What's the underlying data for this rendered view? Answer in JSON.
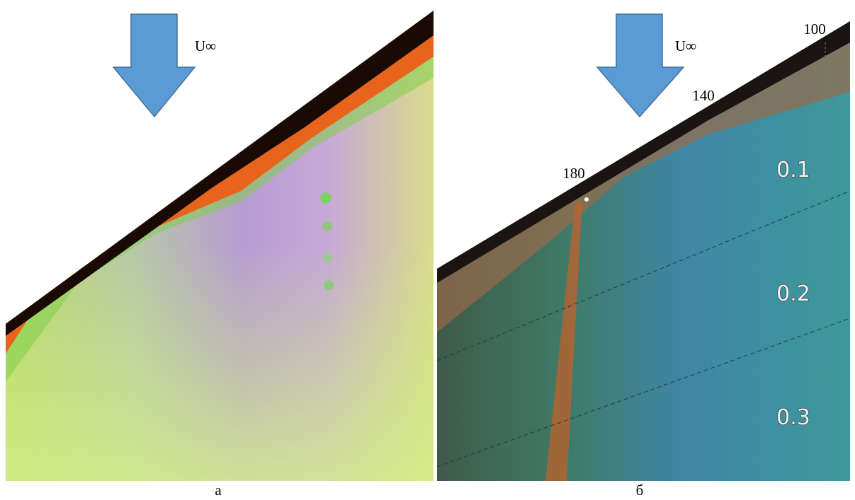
{
  "panels": [
    {
      "label": "а",
      "flow_label": "U∞"
    },
    {
      "label": "б",
      "flow_label": "U∞",
      "edge_marks": [
        "100",
        "140",
        "180"
      ],
      "scale_marks": [
        "0.1",
        "0.2",
        "0.3"
      ]
    }
  ]
}
